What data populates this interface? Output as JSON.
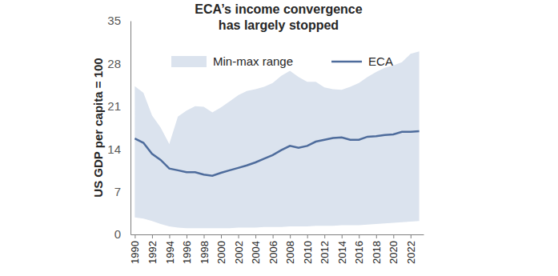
{
  "chart_data": {
    "type": "line",
    "title": [
      "ECA’s income convergence",
      "has largely stopped"
    ],
    "y_label": "US GDP per capita = 100",
    "x": [
      1990,
      1991,
      1992,
      1993,
      1994,
      1995,
      1996,
      1997,
      1998,
      1999,
      2000,
      2001,
      2002,
      2003,
      2004,
      2005,
      2006,
      2007,
      2008,
      2009,
      2010,
      2011,
      2012,
      2013,
      2014,
      2015,
      2016,
      2017,
      2018,
      2019,
      2020,
      2021,
      2022,
      2023
    ],
    "series": [
      {
        "name": "Min-max range",
        "type": "range",
        "color": "#dbe3ee",
        "low": [
          2.8,
          2.6,
          2.2,
          1.7,
          1.3,
          1.1,
          1.0,
          1.0,
          1.0,
          1.0,
          1.0,
          1.0,
          1.1,
          1.1,
          1.1,
          1.2,
          1.2,
          1.2,
          1.3,
          1.3,
          1.3,
          1.4,
          1.4,
          1.4,
          1.5,
          1.5,
          1.5,
          1.6,
          1.7,
          1.8,
          1.9,
          2.0,
          2.1,
          2.2
        ],
        "high": [
          24.3,
          23.2,
          19.5,
          17.5,
          14.8,
          19.3,
          20.3,
          21.0,
          20.9,
          20.0,
          20.8,
          21.8,
          22.8,
          23.5,
          23.8,
          24.2,
          24.8,
          26.0,
          26.8,
          25.8,
          25.0,
          25.0,
          24.1,
          23.8,
          23.7,
          24.2,
          24.8,
          25.8,
          26.6,
          27.3,
          27.7,
          28.2,
          29.6,
          30.0
        ]
      },
      {
        "name": "ECA",
        "type": "line",
        "color": "#4e6c9c",
        "values": [
          15.7,
          15.0,
          13.2,
          12.2,
          10.8,
          10.5,
          10.2,
          10.2,
          9.8,
          9.6,
          10.1,
          10.5,
          10.9,
          11.3,
          11.8,
          12.4,
          13.0,
          13.8,
          14.5,
          14.2,
          14.5,
          15.2,
          15.5,
          15.8,
          15.9,
          15.5,
          15.5,
          16.0,
          16.1,
          16.3,
          16.4,
          16.8,
          16.8,
          16.9
        ]
      }
    ],
    "xlim": [
      1989.5,
      2023.5
    ],
    "xticks": [
      1990,
      1992,
      1994,
      1996,
      1998,
      2000,
      2002,
      2004,
      2006,
      2008,
      2010,
      2012,
      2014,
      2016,
      2018,
      2020,
      2022
    ],
    "ylim": [
      0,
      35
    ],
    "yticks": [
      0,
      7,
      14,
      21,
      28,
      35
    ],
    "grid": false,
    "legend": "top"
  }
}
